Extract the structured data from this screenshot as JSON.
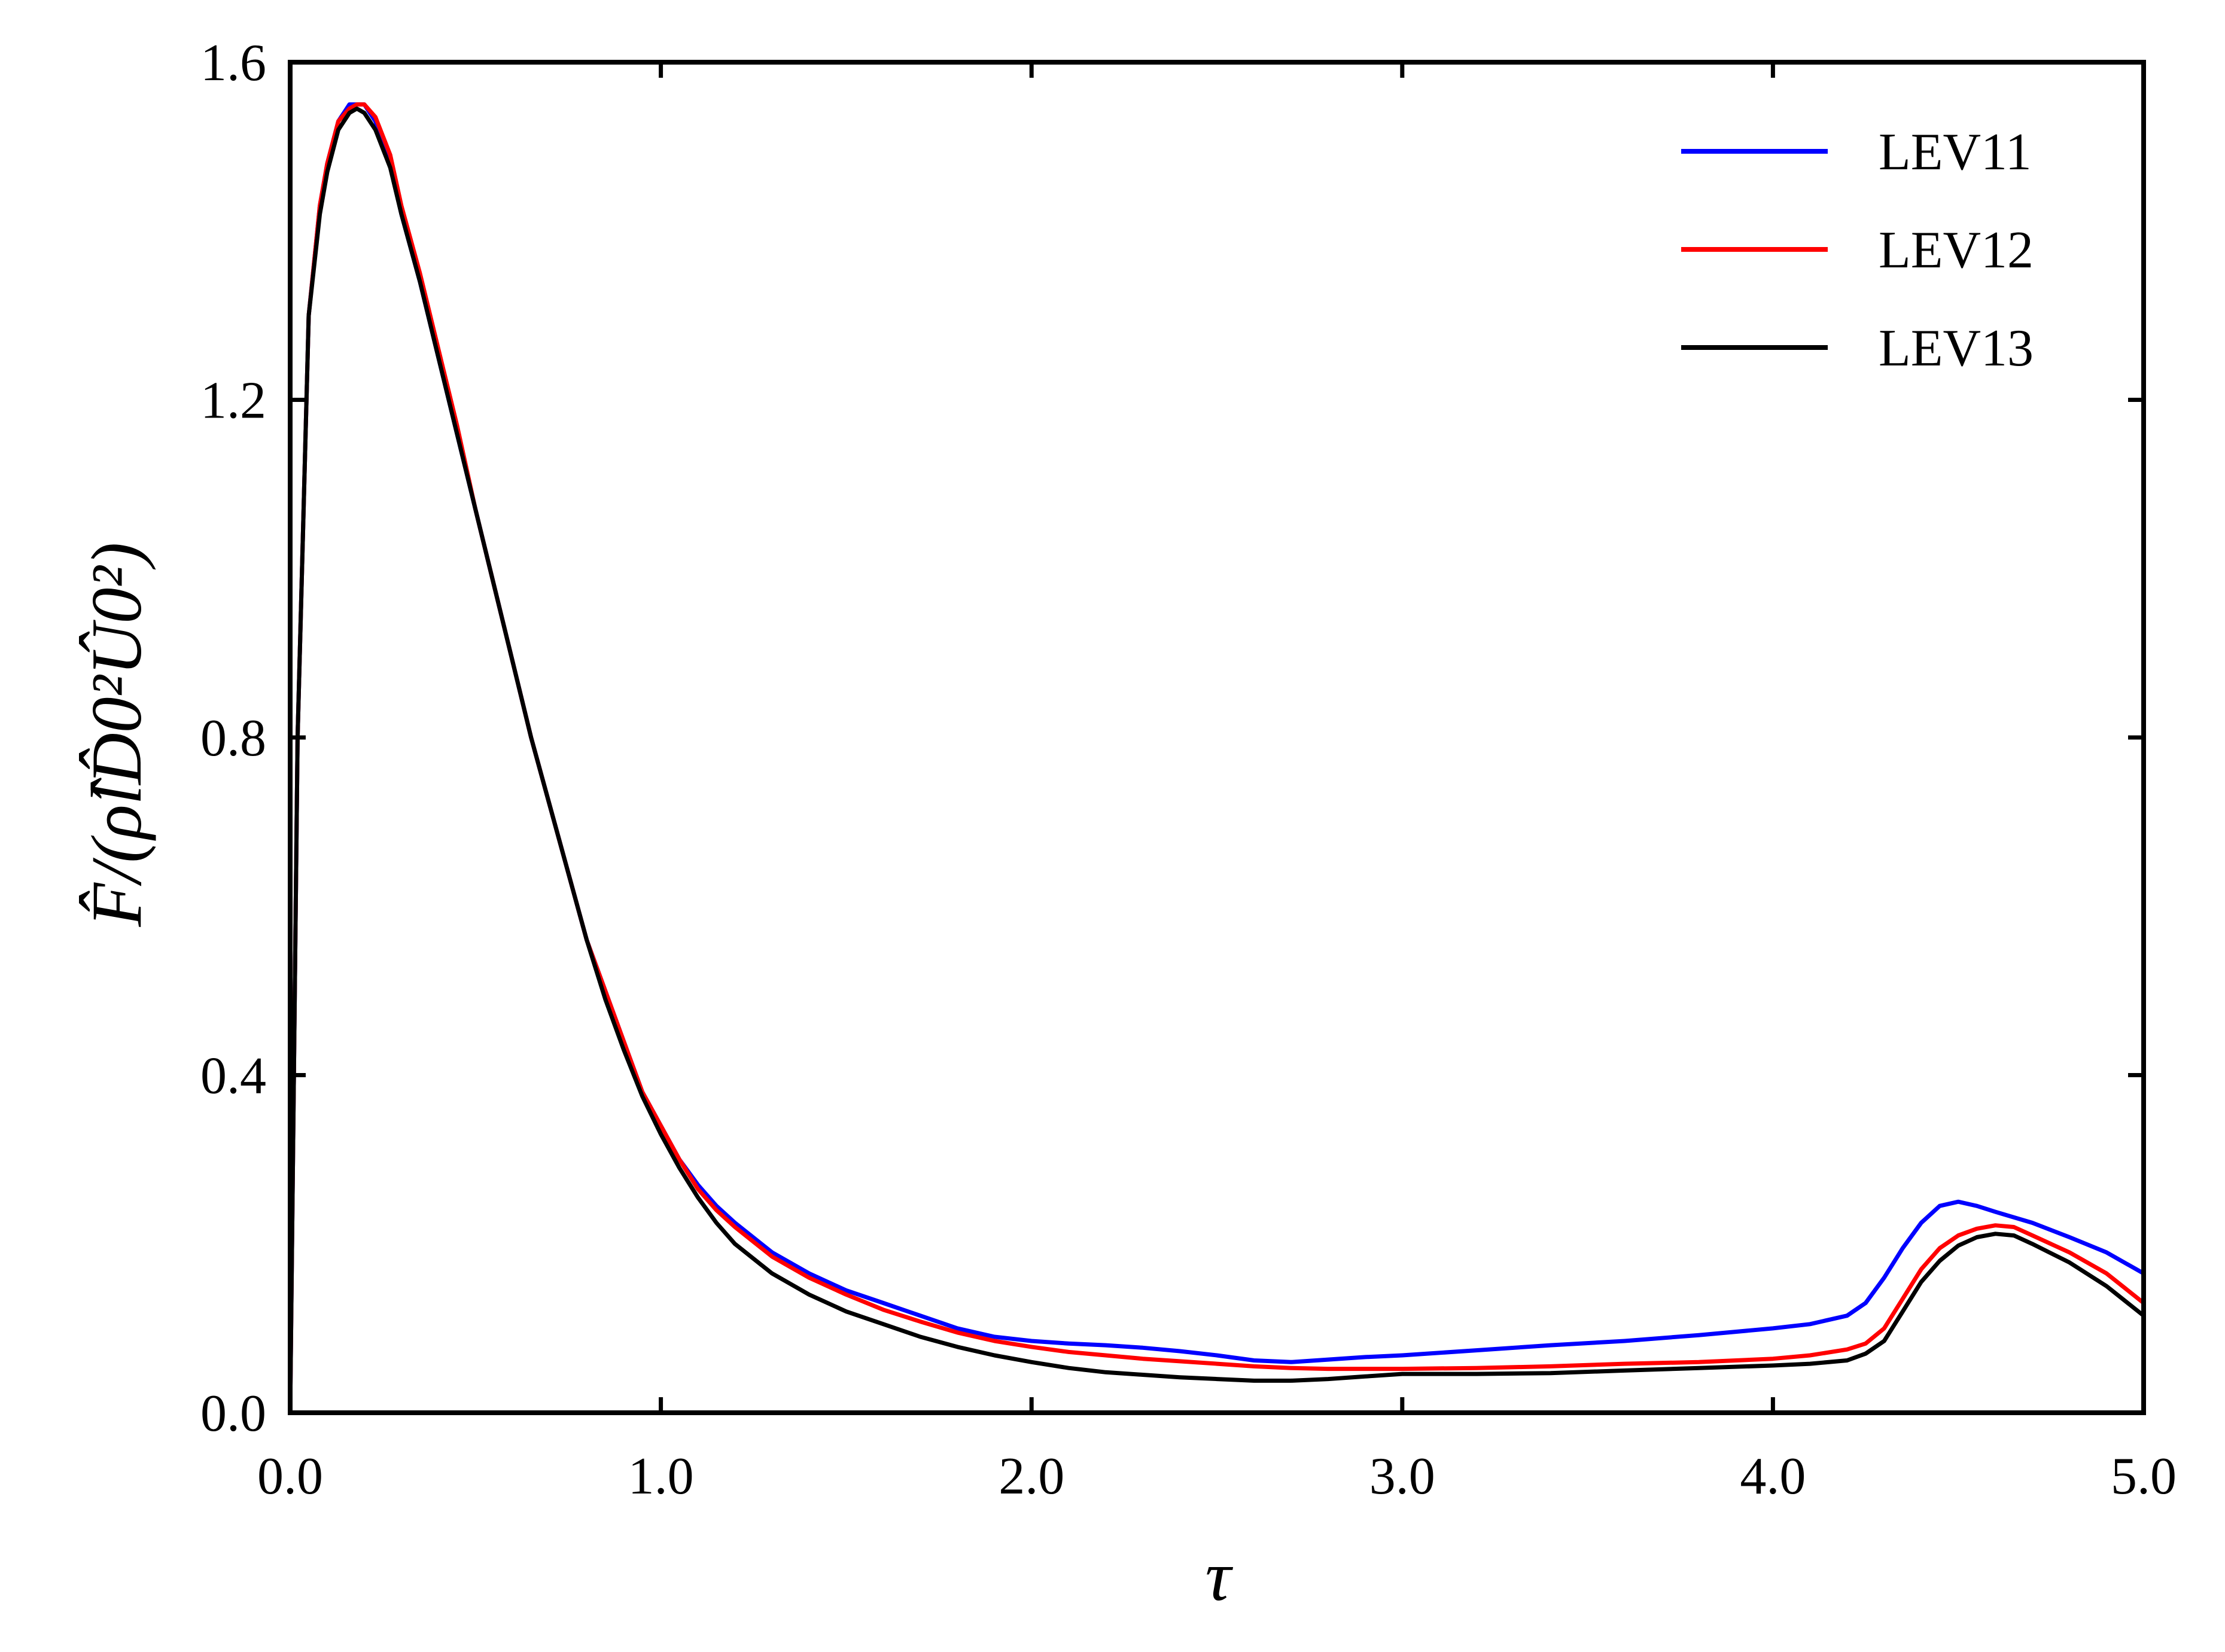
{
  "chart_data": {
    "type": "line",
    "xlabel": "τ",
    "ylabel": "F̂/(ρ̂lD̂0²Û0²)",
    "xlim": [
      0.0,
      5.0
    ],
    "ylim": [
      0.0,
      1.6
    ],
    "xticks": [
      0.0,
      1.0,
      2.0,
      3.0,
      4.0,
      5.0
    ],
    "xtick_labels": [
      "0.0",
      "1.0",
      "2.0",
      "3.0",
      "4.0",
      "5.0"
    ],
    "yticks": [
      0.0,
      0.4,
      0.8,
      1.2,
      1.6
    ],
    "ytick_labels": [
      "0.0",
      "0.4",
      "0.8",
      "1.2",
      "1.6"
    ],
    "grid": false,
    "legend_position": "top-right",
    "series": [
      {
        "name": "LEV11",
        "color": "#0000ff",
        "x": [
          0.0,
          0.02,
          0.05,
          0.08,
          0.1,
          0.13,
          0.16,
          0.18,
          0.2,
          0.23,
          0.27,
          0.3,
          0.35,
          0.4,
          0.45,
          0.5,
          0.55,
          0.6,
          0.65,
          0.7,
          0.75,
          0.8,
          0.85,
          0.9,
          0.95,
          1.0,
          1.05,
          1.1,
          1.15,
          1.2,
          1.3,
          1.4,
          1.5,
          1.6,
          1.7,
          1.8,
          1.9,
          2.0,
          2.1,
          2.2,
          2.3,
          2.4,
          2.5,
          2.6,
          2.7,
          2.8,
          2.9,
          3.0,
          3.2,
          3.4,
          3.6,
          3.8,
          4.0,
          4.1,
          4.2,
          4.25,
          4.3,
          4.35,
          4.4,
          4.45,
          4.5,
          4.55,
          4.6,
          4.7,
          4.8,
          4.9,
          5.0
        ],
        "y": [
          0.0,
          0.8,
          1.3,
          1.43,
          1.48,
          1.53,
          1.55,
          1.55,
          1.55,
          1.53,
          1.48,
          1.42,
          1.34,
          1.25,
          1.16,
          1.07,
          0.98,
          0.89,
          0.8,
          0.72,
          0.64,
          0.56,
          0.5,
          0.44,
          0.38,
          0.34,
          0.3,
          0.27,
          0.245,
          0.225,
          0.19,
          0.165,
          0.145,
          0.13,
          0.115,
          0.1,
          0.09,
          0.085,
          0.082,
          0.08,
          0.077,
          0.073,
          0.068,
          0.062,
          0.06,
          0.063,
          0.066,
          0.068,
          0.074,
          0.08,
          0.085,
          0.092,
          0.1,
          0.105,
          0.115,
          0.13,
          0.16,
          0.195,
          0.225,
          0.245,
          0.25,
          0.245,
          0.238,
          0.225,
          0.208,
          0.19,
          0.165
        ]
      },
      {
        "name": "LEV12",
        "color": "#ff0000",
        "x": [
          0.0,
          0.02,
          0.05,
          0.08,
          0.1,
          0.13,
          0.16,
          0.18,
          0.2,
          0.23,
          0.27,
          0.3,
          0.35,
          0.4,
          0.45,
          0.5,
          0.55,
          0.6,
          0.65,
          0.7,
          0.75,
          0.8,
          0.85,
          0.9,
          0.95,
          1.0,
          1.05,
          1.1,
          1.15,
          1.2,
          1.3,
          1.4,
          1.5,
          1.6,
          1.7,
          1.8,
          1.9,
          2.0,
          2.1,
          2.2,
          2.3,
          2.4,
          2.5,
          2.6,
          2.7,
          2.8,
          2.9,
          3.0,
          3.2,
          3.4,
          3.6,
          3.8,
          4.0,
          4.1,
          4.2,
          4.25,
          4.3,
          4.35,
          4.4,
          4.45,
          4.5,
          4.55,
          4.6,
          4.65,
          4.7,
          4.8,
          4.9,
          5.0
        ],
        "y": [
          0.0,
          0.8,
          1.3,
          1.43,
          1.48,
          1.53,
          1.545,
          1.55,
          1.55,
          1.535,
          1.49,
          1.43,
          1.35,
          1.26,
          1.17,
          1.07,
          0.98,
          0.89,
          0.8,
          0.72,
          0.64,
          0.56,
          0.5,
          0.44,
          0.38,
          0.34,
          0.3,
          0.265,
          0.24,
          0.22,
          0.185,
          0.16,
          0.14,
          0.122,
          0.108,
          0.095,
          0.085,
          0.078,
          0.072,
          0.068,
          0.064,
          0.061,
          0.058,
          0.055,
          0.053,
          0.052,
          0.052,
          0.052,
          0.053,
          0.055,
          0.058,
          0.06,
          0.064,
          0.068,
          0.075,
          0.082,
          0.1,
          0.135,
          0.17,
          0.195,
          0.21,
          0.218,
          0.222,
          0.22,
          0.21,
          0.19,
          0.165,
          0.13
        ]
      },
      {
        "name": "LEV13",
        "color": "#000000",
        "x": [
          0.0,
          0.02,
          0.05,
          0.08,
          0.1,
          0.13,
          0.16,
          0.18,
          0.2,
          0.23,
          0.27,
          0.3,
          0.35,
          0.4,
          0.45,
          0.5,
          0.55,
          0.6,
          0.65,
          0.7,
          0.75,
          0.8,
          0.85,
          0.9,
          0.95,
          1.0,
          1.05,
          1.1,
          1.15,
          1.2,
          1.3,
          1.4,
          1.5,
          1.6,
          1.7,
          1.8,
          1.9,
          2.0,
          2.1,
          2.2,
          2.3,
          2.4,
          2.5,
          2.6,
          2.7,
          2.8,
          2.9,
          3.0,
          3.2,
          3.4,
          3.6,
          3.8,
          4.0,
          4.1,
          4.2,
          4.25,
          4.3,
          4.35,
          4.4,
          4.45,
          4.5,
          4.55,
          4.6,
          4.65,
          4.7,
          4.8,
          4.9,
          5.0
        ],
        "y": [
          0.0,
          0.8,
          1.3,
          1.42,
          1.47,
          1.52,
          1.54,
          1.545,
          1.54,
          1.52,
          1.475,
          1.42,
          1.34,
          1.25,
          1.16,
          1.07,
          0.98,
          0.89,
          0.8,
          0.72,
          0.64,
          0.56,
          0.49,
          0.43,
          0.375,
          0.33,
          0.29,
          0.255,
          0.225,
          0.2,
          0.165,
          0.14,
          0.12,
          0.105,
          0.09,
          0.078,
          0.068,
          0.06,
          0.053,
          0.048,
          0.045,
          0.042,
          0.04,
          0.038,
          0.038,
          0.04,
          0.043,
          0.046,
          0.046,
          0.047,
          0.05,
          0.053,
          0.056,
          0.058,
          0.062,
          0.07,
          0.085,
          0.12,
          0.155,
          0.18,
          0.198,
          0.208,
          0.212,
          0.21,
          0.2,
          0.178,
          0.15,
          0.115
        ]
      }
    ]
  }
}
